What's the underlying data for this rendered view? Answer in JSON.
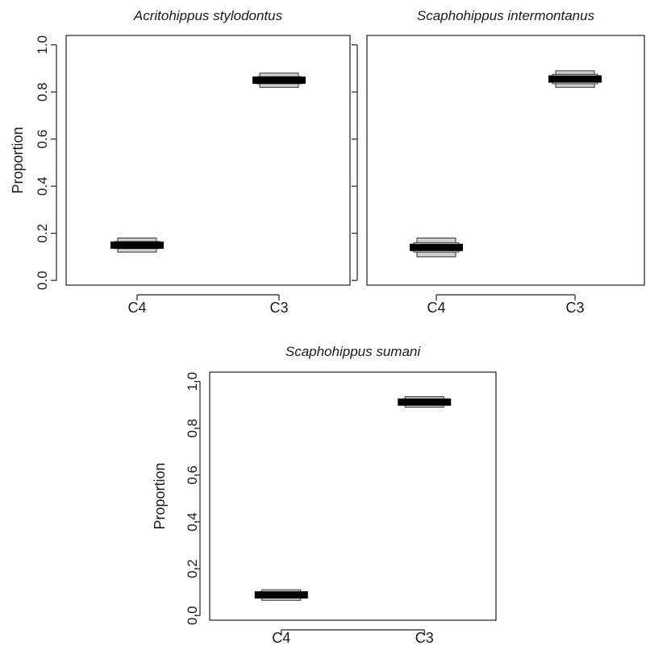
{
  "figure": {
    "background": "#ffffff",
    "frame_color": "#222222",
    "outer_box_color": "#d0d0d0",
    "inner_box_color": "#f2f2f2",
    "median_color": "#000000"
  },
  "chart_data": [
    {
      "type": "box",
      "title": "Acritohippus stylodontus",
      "xlabel": "",
      "ylabel": "Proportion",
      "categories": [
        "C4",
        "C3"
      ],
      "ylim": [
        -0.02,
        1.04
      ],
      "yticks": [
        0.0,
        0.2,
        0.4,
        0.6,
        0.8,
        1.0
      ],
      "ytick_labels": [
        "0.0",
        "0.2",
        "0.4",
        "0.6",
        "0.8",
        "1.0"
      ],
      "boxes": [
        {
          "category": "C4",
          "outer_low": 0.12,
          "inner_low": 0.135,
          "median": 0.15,
          "inner_high": 0.165,
          "outer_high": 0.18
        },
        {
          "category": "C3",
          "outer_low": 0.82,
          "inner_low": 0.835,
          "median": 0.85,
          "inner_high": 0.865,
          "outer_high": 0.88
        }
      ],
      "grid": false,
      "legend": "none"
    },
    {
      "type": "box",
      "title": "Scaphohippus intermontanus",
      "xlabel": "",
      "ylabel": "",
      "categories": [
        "C4",
        "C3"
      ],
      "ylim": [
        -0.02,
        1.04
      ],
      "yticks": [
        0.0,
        0.2,
        0.4,
        0.6,
        0.8,
        1.0
      ],
      "ytick_labels": [],
      "boxes": [
        {
          "category": "C4",
          "outer_low": 0.1,
          "inner_low": 0.12,
          "median": 0.14,
          "inner_high": 0.16,
          "outer_high": 0.18
        },
        {
          "category": "C3",
          "outer_low": 0.82,
          "inner_low": 0.835,
          "median": 0.855,
          "inner_high": 0.875,
          "outer_high": 0.89
        }
      ],
      "grid": false,
      "legend": "none"
    },
    {
      "type": "box",
      "title": "Scaphohippus sumani",
      "xlabel": "",
      "ylabel": "Proportion",
      "categories": [
        "C4",
        "C3"
      ],
      "ylim": [
        -0.02,
        1.04
      ],
      "yticks": [
        0.0,
        0.2,
        0.4,
        0.6,
        0.8,
        1.0
      ],
      "ytick_labels": [
        "0.0",
        "0.2",
        "0.4",
        "0.6",
        "0.8",
        "1.0"
      ],
      "boxes": [
        {
          "category": "C4",
          "outer_low": 0.065,
          "inner_low": 0.075,
          "median": 0.088,
          "inner_high": 0.1,
          "outer_high": 0.11
        },
        {
          "category": "C3",
          "outer_low": 0.89,
          "inner_low": 0.9,
          "median": 0.912,
          "inner_high": 0.925,
          "outer_high": 0.935
        }
      ],
      "grid": false,
      "legend": "none"
    }
  ]
}
